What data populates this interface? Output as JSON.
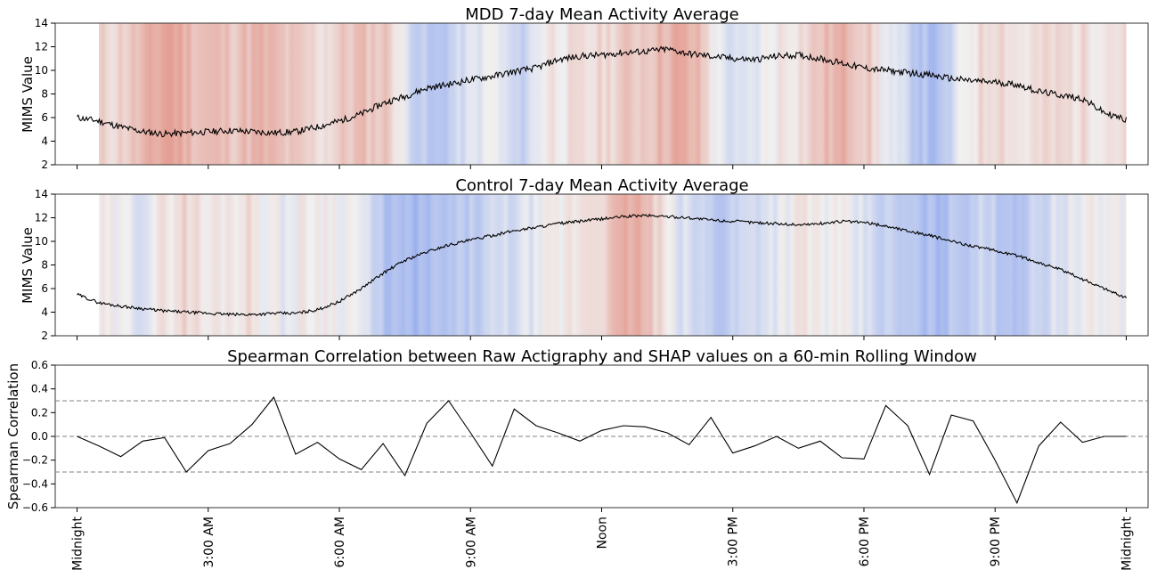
{
  "chart_data": [
    {
      "type": "line",
      "title": "MDD 7-day Mean Activity Average",
      "ylabel": "MIMS Value",
      "ylim": [
        2,
        14
      ],
      "yticks": [
        2,
        4,
        6,
        8,
        10,
        12,
        14
      ],
      "xlim_hours": [
        -0.5,
        24.5
      ],
      "x_hours": [
        0,
        0.5,
        1,
        1.5,
        2,
        2.5,
        3,
        3.5,
        4,
        4.5,
        5,
        5.5,
        6,
        6.5,
        7,
        7.5,
        8,
        8.5,
        9,
        9.5,
        10,
        10.5,
        11,
        11.5,
        12,
        12.5,
        13,
        13.5,
        14,
        14.5,
        15,
        15.5,
        16,
        16.5,
        17,
        17.5,
        18,
        18.5,
        19,
        19.5,
        20,
        20.5,
        21,
        21.5,
        22,
        22.5,
        23,
        23.5,
        24
      ],
      "values": [
        6.0,
        5.7,
        5.2,
        4.8,
        4.6,
        4.7,
        4.8,
        4.9,
        4.8,
        4.7,
        4.8,
        5.2,
        5.7,
        6.3,
        7.2,
        7.8,
        8.5,
        8.8,
        9.2,
        9.5,
        9.9,
        10.2,
        10.9,
        11.2,
        11.3,
        11.5,
        11.6,
        11.8,
        11.4,
        11.2,
        11.0,
        10.9,
        11.2,
        11.3,
        11.0,
        10.6,
        10.2,
        10.0,
        9.8,
        9.6,
        9.3,
        9.1,
        9.0,
        8.8,
        8.2,
        7.9,
        7.6,
        6.4,
        5.8
      ],
      "background": "SHAP value heatmap from 0:00 to 24:00 (red = positive, blue = negative)",
      "shap_strip_hours": [
        0.5,
        24.0
      ]
    },
    {
      "type": "line",
      "title": "Control 7-day Mean Activity Average",
      "ylabel": "MIMS Value",
      "ylim": [
        2,
        14
      ],
      "yticks": [
        2,
        4,
        6,
        8,
        10,
        12,
        14
      ],
      "xlim_hours": [
        -0.5,
        24.5
      ],
      "x_hours": [
        0,
        0.5,
        1,
        1.5,
        2,
        2.5,
        3,
        3.5,
        4,
        4.5,
        5,
        5.5,
        6,
        6.5,
        7,
        7.5,
        8,
        8.5,
        9,
        9.5,
        10,
        10.5,
        11,
        11.5,
        12,
        12.5,
        13,
        13.5,
        14,
        14.5,
        15,
        15.5,
        16,
        16.5,
        17,
        17.5,
        18,
        18.5,
        19,
        19.5,
        20,
        20.5,
        21,
        21.5,
        22,
        22.5,
        23,
        23.5,
        24
      ],
      "values": [
        5.5,
        4.8,
        4.5,
        4.3,
        4.1,
        4.0,
        3.9,
        3.8,
        3.8,
        3.9,
        3.9,
        4.2,
        4.9,
        6.0,
        7.3,
        8.4,
        9.1,
        9.7,
        10.1,
        10.5,
        10.9,
        11.2,
        11.5,
        11.7,
        11.9,
        12.1,
        12.2,
        12.1,
        12.0,
        11.8,
        11.7,
        11.6,
        11.5,
        11.4,
        11.5,
        11.7,
        11.6,
        11.3,
        10.9,
        10.5,
        10.0,
        9.6,
        9.2,
        8.8,
        8.2,
        7.6,
        6.8,
        6.0,
        5.2
      ],
      "background": "SHAP value heatmap from 0:00 to 24:00 (red = positive, blue = negative)",
      "shap_strip_hours": [
        0.5,
        24.0
      ]
    },
    {
      "type": "line",
      "title": "Spearman Correlation between Raw Actigraphy and SHAP values on a 60-min Rolling Window",
      "ylabel": "Spearman Correlation",
      "ylim": [
        -0.6,
        0.6
      ],
      "yticks": [
        "0.6",
        "0.4",
        "0.2",
        "0.0",
        "−0.2",
        "−0.4",
        "−0.6"
      ],
      "ytick_values": [
        0.6,
        0.4,
        0.2,
        0.0,
        -0.2,
        -0.4,
        -0.6
      ],
      "xlim_hours": [
        -0.5,
        24.5
      ],
      "reference_lines": [
        0.3,
        0.0,
        -0.3
      ],
      "x_hours": [
        0,
        0.5,
        1,
        1.5,
        2,
        2.5,
        3,
        3.5,
        4,
        4.5,
        5,
        5.5,
        6,
        6.5,
        7,
        7.5,
        8,
        8.5,
        9,
        9.5,
        10,
        10.5,
        11,
        11.5,
        12,
        12.5,
        13,
        13.5,
        14,
        14.5,
        15,
        15.5,
        16,
        16.5,
        17,
        17.5,
        18,
        18.5,
        19,
        19.5,
        20,
        20.5,
        21,
        21.5,
        22,
        22.5,
        23,
        23.5,
        24
      ],
      "values": [
        0.0,
        -0.08,
        -0.17,
        -0.04,
        -0.01,
        -0.3,
        -0.12,
        -0.06,
        0.1,
        0.33,
        -0.15,
        -0.05,
        -0.19,
        -0.28,
        -0.06,
        -0.33,
        0.11,
        0.3,
        0.03,
        -0.25,
        0.23,
        0.09,
        0.03,
        -0.04,
        0.05,
        0.09,
        0.08,
        0.03,
        -0.07,
        0.16,
        -0.14,
        -0.08,
        0.0,
        -0.1,
        -0.04,
        -0.18,
        -0.19,
        0.26,
        0.09,
        -0.32,
        0.18,
        0.13,
        -0.2,
        -0.56,
        -0.08,
        0.12,
        -0.05,
        0.0,
        0.0
      ]
    }
  ],
  "x_tick_labels": [
    "Midnight",
    "3:00 AM",
    "6:00 AM",
    "9:00 AM",
    "Noon",
    "3:00 PM",
    "6:00 PM",
    "9:00 PM",
    "Midnight"
  ],
  "x_tick_hours": [
    0,
    3,
    6,
    9,
    12,
    15,
    18,
    21,
    24
  ],
  "colors": {
    "line": "#000000",
    "positive_shap": "#d6604d",
    "negative_shap": "#6d8de8",
    "neutral": "#ececec",
    "reference_line": "#808080"
  }
}
